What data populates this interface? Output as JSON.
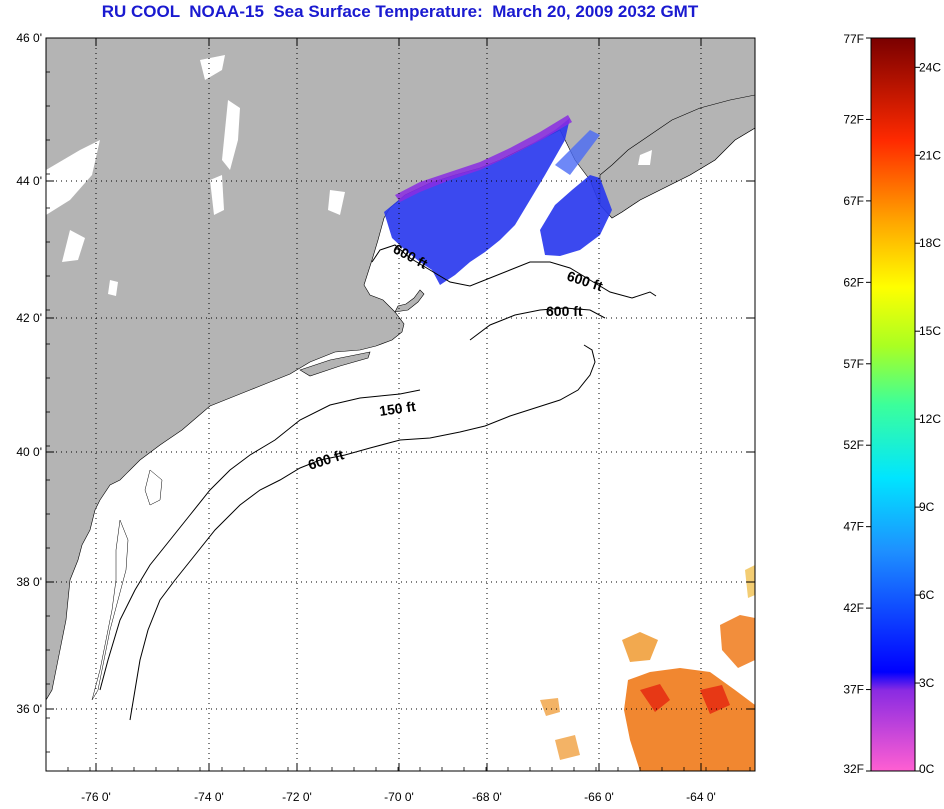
{
  "title": "RU COOL  NOAA-15  Sea Surface Temperature:  March 20, 2009 2032 GMT",
  "lon_ticks": [
    "-76 0'",
    "-74 0'",
    "-72 0'",
    "-70 0'",
    "-68 0'",
    "-66 0'",
    "-64 0'"
  ],
  "lat_ticks": [
    "46 0'",
    "44 0'",
    "42 0'",
    "40 0'",
    "38 0'",
    "36 0'"
  ],
  "contour_labels": {
    "c1": "600 ft",
    "c2": "600 ft",
    "c3": "600 ft",
    "c4": "150 ft",
    "c5": "600 ft"
  },
  "colorbar": {
    "fahrenheit": [
      "77F",
      "72F",
      "67F",
      "62F",
      "57F",
      "52F",
      "47F",
      "42F",
      "37F",
      "32F"
    ],
    "celsius": [
      "24C",
      "21C",
      "18C",
      "15C",
      "12C",
      "9C",
      "6C",
      "3C",
      "0C"
    ]
  },
  "colors": {
    "land": "#b4b4b4",
    "water": "#ffffff",
    "title": "#1a1ad0",
    "cold_sst": "#2a3aee",
    "warm_sst": "#f07a1a"
  }
}
